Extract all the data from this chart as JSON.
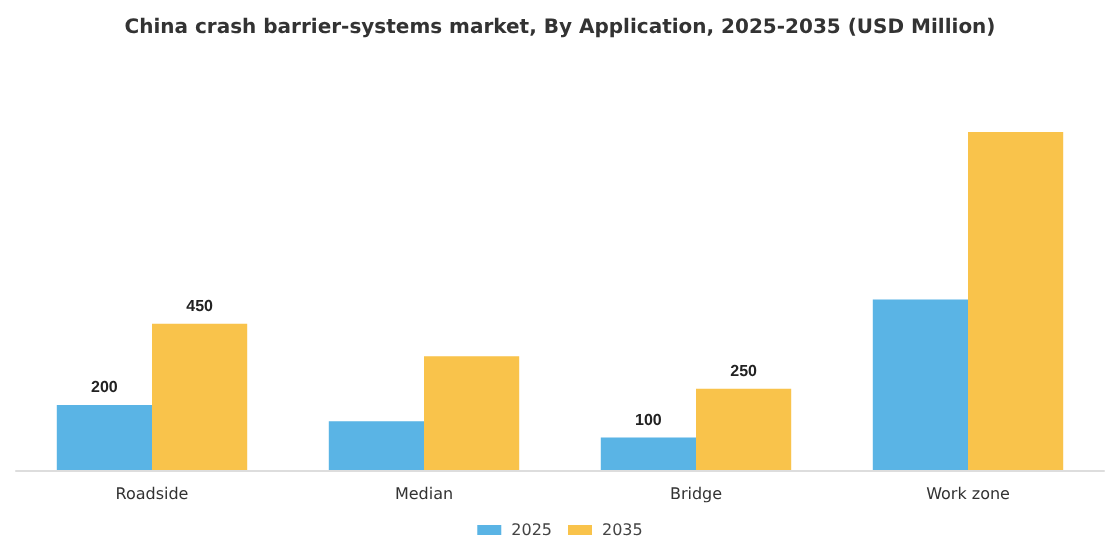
{
  "chart_data": {
    "type": "bar",
    "title": "China crash barrier-systems market, By Application, 2025-2035 (USD Million)",
    "categories": [
      "Roadside",
      "Median",
      "Bridge",
      "Work zone"
    ],
    "series": [
      {
        "name": "2025",
        "color": "#5ab4e5",
        "values": [
          200,
          150,
          100,
          525
        ],
        "value_labels": [
          "200",
          null,
          "100",
          null
        ]
      },
      {
        "name": "2035",
        "color": "#f9c34b",
        "values": [
          450,
          350,
          250,
          1040
        ],
        "value_labels": [
          "450",
          null,
          "250",
          null
        ]
      }
    ],
    "legend": "bottom"
  }
}
